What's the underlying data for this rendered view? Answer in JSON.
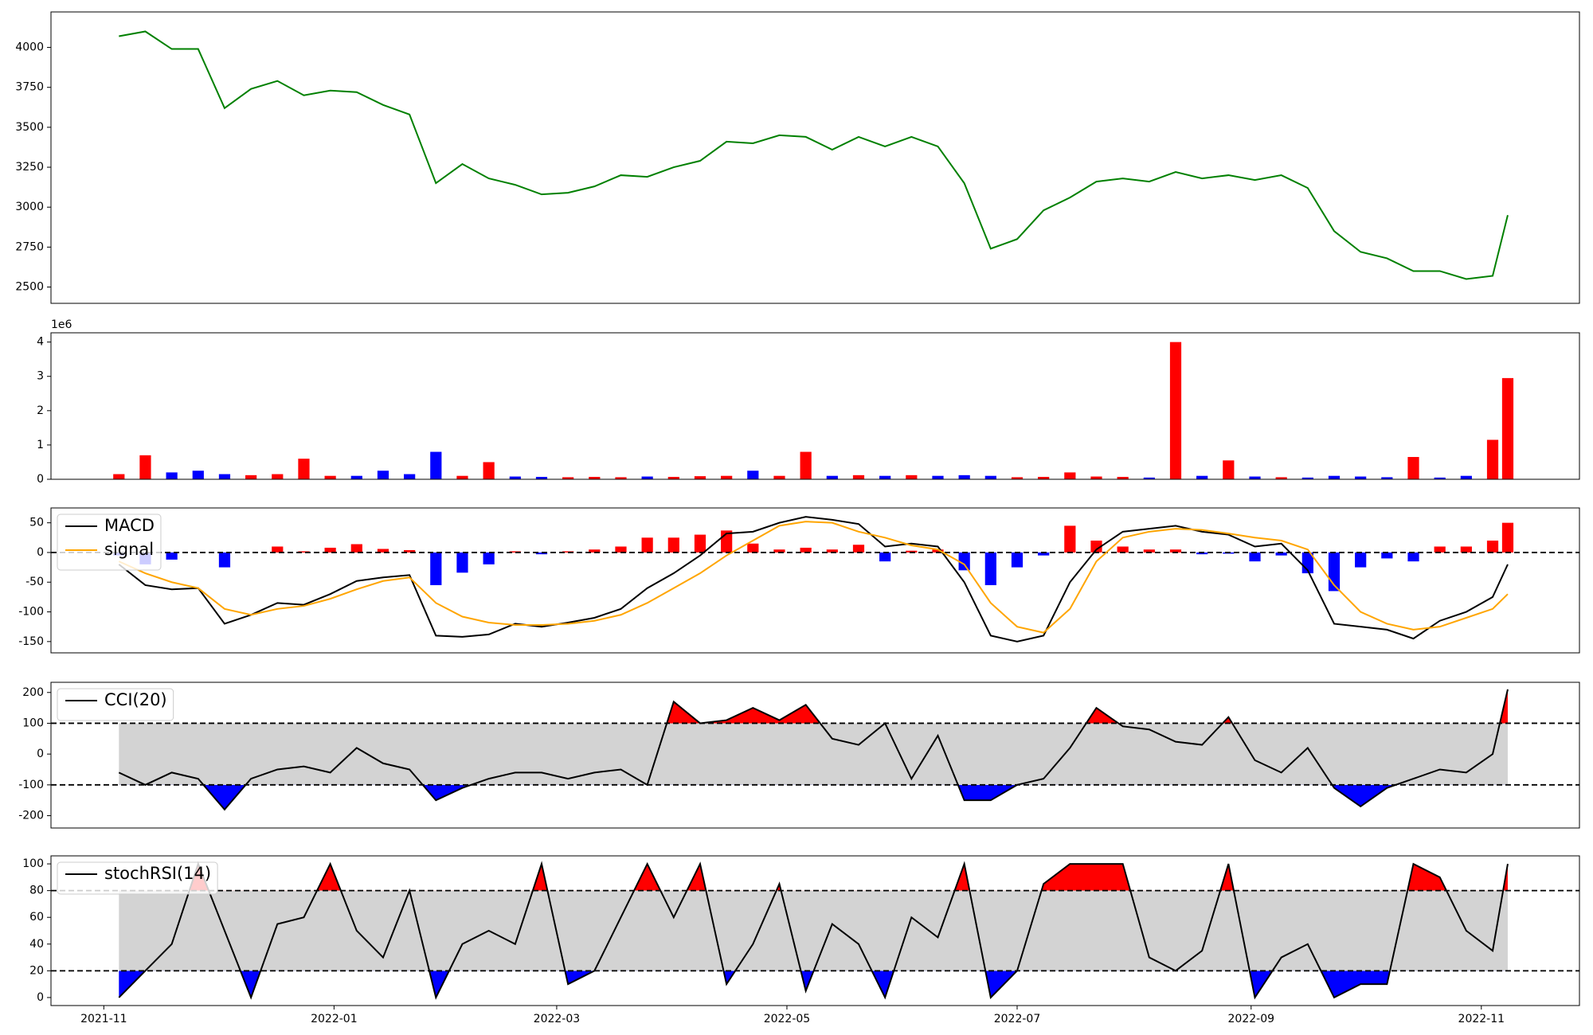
{
  "chart_data": [
    {
      "type": "line",
      "xlim": [
        -14,
        391
      ],
      "x": [
        4,
        11,
        18,
        25,
        32,
        39,
        46,
        53,
        60,
        67,
        74,
        81,
        88,
        95,
        102,
        109,
        116,
        123,
        130,
        137,
        144,
        151,
        158,
        165,
        172,
        179,
        186,
        193,
        200,
        207,
        214,
        221,
        228,
        235,
        242,
        249,
        256,
        263,
        270,
        277,
        284,
        291,
        298,
        305,
        312,
        319,
        326,
        333,
        340,
        347,
        354,
        361,
        368,
        372
      ],
      "series": [
        {
          "color": "green",
          "values": [
            4070,
            4100,
            3990,
            3990,
            3620,
            3740,
            3790,
            3700,
            3730,
            3720,
            3640,
            3580,
            3150,
            3270,
            3180,
            3140,
            3080,
            3090,
            3130,
            3200,
            3190,
            3250,
            3290,
            3410,
            3400,
            3450,
            3440,
            3360,
            3440,
            3380,
            3440,
            3380,
            3150,
            2740,
            2800,
            2980,
            3060,
            3160,
            3180,
            3160,
            3220,
            3180,
            3200,
            3170,
            3200,
            3120,
            2850,
            2720,
            2680,
            2600,
            2600,
            2550,
            2570,
            2950
          ]
        }
      ],
      "ylim": [
        2398,
        4222
      ],
      "yticks": [
        2500,
        2750,
        3000,
        3250,
        3500,
        3750,
        4000
      ]
    },
    {
      "type": "bar",
      "xlim": [
        -14,
        391
      ],
      "offset_label": "1e6",
      "x": [
        4,
        11,
        18,
        25,
        32,
        39,
        46,
        53,
        60,
        67,
        74,
        81,
        88,
        95,
        102,
        109,
        116,
        123,
        130,
        137,
        144,
        151,
        158,
        165,
        172,
        179,
        186,
        193,
        200,
        207,
        214,
        221,
        228,
        235,
        242,
        249,
        256,
        263,
        270,
        277,
        284,
        291,
        298,
        305,
        312,
        319,
        326,
        333,
        340,
        347,
        354,
        361,
        368,
        372
      ],
      "values": [
        0.15,
        0.7,
        0.2,
        0.25,
        0.15,
        0.12,
        0.15,
        0.6,
        0.1,
        0.1,
        0.25,
        0.15,
        0.8,
        0.1,
        0.5,
        0.08,
        0.07,
        0.06,
        0.07,
        0.06,
        0.08,
        0.07,
        0.09,
        0.1,
        0.25,
        0.1,
        0.8,
        0.1,
        0.12,
        0.1,
        0.12,
        0.1,
        0.12,
        0.1,
        0.06,
        0.07,
        0.2,
        0.08,
        0.07,
        0.05,
        4.0,
        0.1,
        0.55,
        0.08,
        0.06,
        0.05,
        0.1,
        0.08,
        0.06,
        0.65,
        0.05,
        0.1,
        1.15,
        2.95
      ],
      "colors": [
        "red",
        "red",
        "blue",
        "blue",
        "blue",
        "red",
        "red",
        "red",
        "red",
        "blue",
        "blue",
        "blue",
        "blue",
        "red",
        "red",
        "blue",
        "blue",
        "red",
        "red",
        "red",
        "blue",
        "red",
        "red",
        "red",
        "blue",
        "red",
        "red",
        "blue",
        "red",
        "blue",
        "red",
        "blue",
        "blue",
        "blue",
        "red",
        "red",
        "red",
        "red",
        "red",
        "blue",
        "red",
        "blue",
        "red",
        "blue",
        "red",
        "blue",
        "blue",
        "blue",
        "blue",
        "red",
        "blue",
        "blue",
        "red",
        "red"
      ],
      "ylim": [
        0,
        4.27
      ],
      "yticks": [
        0,
        1,
        2,
        3,
        4
      ]
    },
    {
      "type": "combo",
      "xlim": [
        -14,
        391
      ],
      "hlines": [
        0
      ],
      "legend": "upper left",
      "x": [
        4,
        11,
        18,
        25,
        32,
        39,
        46,
        53,
        60,
        67,
        74,
        81,
        88,
        95,
        102,
        109,
        116,
        123,
        130,
        137,
        144,
        151,
        158,
        165,
        172,
        179,
        186,
        193,
        200,
        207,
        214,
        221,
        228,
        235,
        242,
        249,
        256,
        263,
        270,
        277,
        284,
        291,
        298,
        305,
        312,
        319,
        326,
        333,
        340,
        347,
        354,
        361,
        368,
        372
      ],
      "series": [
        {
          "type": "bar",
          "pos_color": "red",
          "neg_color": "blue",
          "values": [
            -5,
            -20,
            -12,
            0,
            -25,
            0,
            10,
            2,
            8,
            14,
            6,
            4,
            -55,
            -34,
            -20,
            2,
            -3,
            2,
            5,
            10,
            25,
            25,
            30,
            37,
            15,
            5,
            8,
            5,
            13,
            -15,
            3,
            5,
            -30,
            -55,
            -25,
            -5,
            45,
            20,
            10,
            5,
            5,
            -3,
            -2,
            -15,
            -5,
            -35,
            -65,
            -25,
            -10,
            -15,
            10,
            10,
            20,
            50
          ]
        },
        {
          "type": "line",
          "name": "MACD",
          "color": "black",
          "values": [
            -20,
            -55,
            -62,
            -60,
            -120,
            -105,
            -85,
            -88,
            -70,
            -48,
            -42,
            -38,
            -140,
            -142,
            -138,
            -120,
            -125,
            -118,
            -110,
            -95,
            -60,
            -35,
            -5,
            32,
            35,
            50,
            60,
            55,
            48,
            10,
            15,
            10,
            -50,
            -140,
            -150,
            -140,
            -50,
            5,
            35,
            40,
            45,
            35,
            30,
            10,
            15,
            -30,
            -120,
            -125,
            -130,
            -145,
            -115,
            -100,
            -75,
            -20
          ]
        },
        {
          "type": "line",
          "name": "signal",
          "color": "orange",
          "values": [
            -15,
            -35,
            -50,
            -60,
            -95,
            -105,
            -95,
            -90,
            -78,
            -62,
            -48,
            -42,
            -85,
            -108,
            -118,
            -122,
            -122,
            -120,
            -115,
            -105,
            -85,
            -60,
            -35,
            -5,
            20,
            45,
            52,
            50,
            35,
            25,
            12,
            5,
            -20,
            -85,
            -125,
            -135,
            -95,
            -15,
            25,
            35,
            40,
            38,
            32,
            25,
            20,
            5,
            -55,
            -100,
            -120,
            -130,
            -125,
            -110,
            -95,
            -70
          ]
        }
      ],
      "ylim": [
        -169,
        75
      ],
      "yticks": [
        -150,
        -100,
        -50,
        0,
        50
      ]
    },
    {
      "type": "line",
      "xlim": [
        -14,
        391
      ],
      "legend": "upper left",
      "bands": {
        "upper": 100,
        "lower": -100,
        "fill": "lightgray",
        "upper_fill": "red",
        "lower_fill": "blue"
      },
      "x": [
        4,
        11,
        18,
        25,
        32,
        39,
        46,
        53,
        60,
        67,
        74,
        81,
        88,
        95,
        102,
        109,
        116,
        123,
        130,
        137,
        144,
        151,
        158,
        165,
        172,
        179,
        186,
        193,
        200,
        207,
        214,
        221,
        228,
        235,
        242,
        249,
        256,
        263,
        270,
        277,
        284,
        291,
        298,
        305,
        312,
        319,
        326,
        333,
        340,
        347,
        354,
        361,
        368,
        372
      ],
      "series": [
        {
          "name": "CCI(20)",
          "color": "black",
          "values": [
            -60,
            -100,
            -60,
            -80,
            -180,
            -80,
            -50,
            -40,
            -60,
            20,
            -30,
            -50,
            -150,
            -110,
            -80,
            -60,
            -60,
            -80,
            -60,
            -50,
            -100,
            170,
            100,
            110,
            150,
            110,
            160,
            50,
            30,
            100,
            -80,
            60,
            -150,
            -150,
            -100,
            -80,
            20,
            150,
            90,
            80,
            40,
            30,
            120,
            -20,
            -60,
            20,
            -110,
            -170,
            -110,
            -80,
            -50,
            -60,
            0,
            210
          ]
        }
      ],
      "ylim": [
        -240,
        233
      ],
      "yticks": [
        -200,
        -100,
        0,
        100,
        200
      ]
    },
    {
      "type": "line",
      "xlim": [
        -14,
        391
      ],
      "legend": "upper left",
      "bands": {
        "upper": 80,
        "lower": 20,
        "fill": "lightgray",
        "upper_fill": "red",
        "lower_fill": "blue"
      },
      "x": [
        4,
        11,
        18,
        25,
        32,
        39,
        46,
        53,
        60,
        67,
        74,
        81,
        88,
        95,
        102,
        109,
        116,
        123,
        130,
        137,
        144,
        151,
        158,
        165,
        172,
        179,
        186,
        193,
        200,
        207,
        214,
        221,
        228,
        235,
        242,
        249,
        256,
        263,
        270,
        277,
        284,
        291,
        298,
        305,
        312,
        319,
        326,
        333,
        340,
        347,
        354,
        361,
        368,
        372
      ],
      "series": [
        {
          "name": "stochRSI(14)",
          "color": "black",
          "values": [
            0,
            20,
            40,
            100,
            50,
            0,
            55,
            60,
            100,
            50,
            30,
            80,
            0,
            40,
            50,
            40,
            100,
            10,
            20,
            60,
            100,
            60,
            100,
            10,
            40,
            85,
            5,
            55,
            40,
            0,
            60,
            45,
            100,
            0,
            20,
            85,
            100,
            100,
            100,
            30,
            20,
            35,
            100,
            0,
            30,
            40,
            0,
            10,
            10,
            100,
            90,
            50,
            35,
            100
          ]
        }
      ],
      "ylim": [
        -6,
        106
      ],
      "yticks": [
        0,
        20,
        40,
        60,
        80,
        100
      ],
      "xticks": [
        {
          "value": 0,
          "label": "2021-11"
        },
        {
          "value": 61,
          "label": "2022-01"
        },
        {
          "value": 120,
          "label": "2022-03"
        },
        {
          "value": 181,
          "label": "2022-05"
        },
        {
          "value": 242,
          "label": "2022-07"
        },
        {
          "value": 304,
          "label": "2022-09"
        },
        {
          "value": 365,
          "label": "2022-11"
        }
      ]
    }
  ]
}
